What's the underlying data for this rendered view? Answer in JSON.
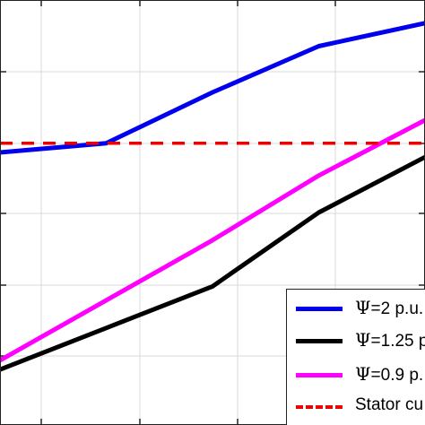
{
  "chart_data": {
    "type": "line",
    "title": "",
    "xlabel": "",
    "ylabel": "",
    "grid": true,
    "legend_position": "bottom-right",
    "series": [
      {
        "name": "=2 p.u.",
        "legend_symbol": "Ψ",
        "color": "#0000ee",
        "style": "solid",
        "x": [
          0,
          1,
          2,
          3,
          4
        ],
        "y": [
          6.4,
          6.6,
          7.7,
          8.7,
          9.2
        ]
      },
      {
        "name": "=1.25 p.",
        "legend_symbol": "Ψ",
        "color": "#000000",
        "style": "solid",
        "x": [
          0,
          1,
          2,
          3,
          4
        ],
        "y": [
          1.7,
          2.6,
          3.5,
          5.1,
          6.3
        ]
      },
      {
        "name": "=0.9 p.",
        "legend_symbol": "Ψ",
        "color": "#ff00ff",
        "style": "solid",
        "x": [
          0,
          1,
          2,
          3,
          4
        ],
        "y": [
          1.9,
          3.2,
          4.5,
          5.9,
          7.1
        ]
      },
      {
        "name": "Stator cu",
        "legend_symbol": "",
        "color": "#ee0000",
        "style": "dashed",
        "x": [
          0,
          4
        ],
        "y": [
          6.6,
          6.6
        ]
      }
    ]
  },
  "legend": {
    "entries": [
      {
        "symbol": "Ψ",
        "label": "=2 p.u.",
        "color": "#0000ee",
        "style": "solid"
      },
      {
        "symbol": "Ψ",
        "label": "=1.25 p.",
        "color": "#000000",
        "style": "solid"
      },
      {
        "symbol": "Ψ",
        "label": "=0.9 p.",
        "color": "#ff00ff",
        "style": "solid"
      },
      {
        "symbol": "",
        "label": "Stator cu",
        "color": "#ee0000",
        "style": "dashed"
      }
    ]
  }
}
